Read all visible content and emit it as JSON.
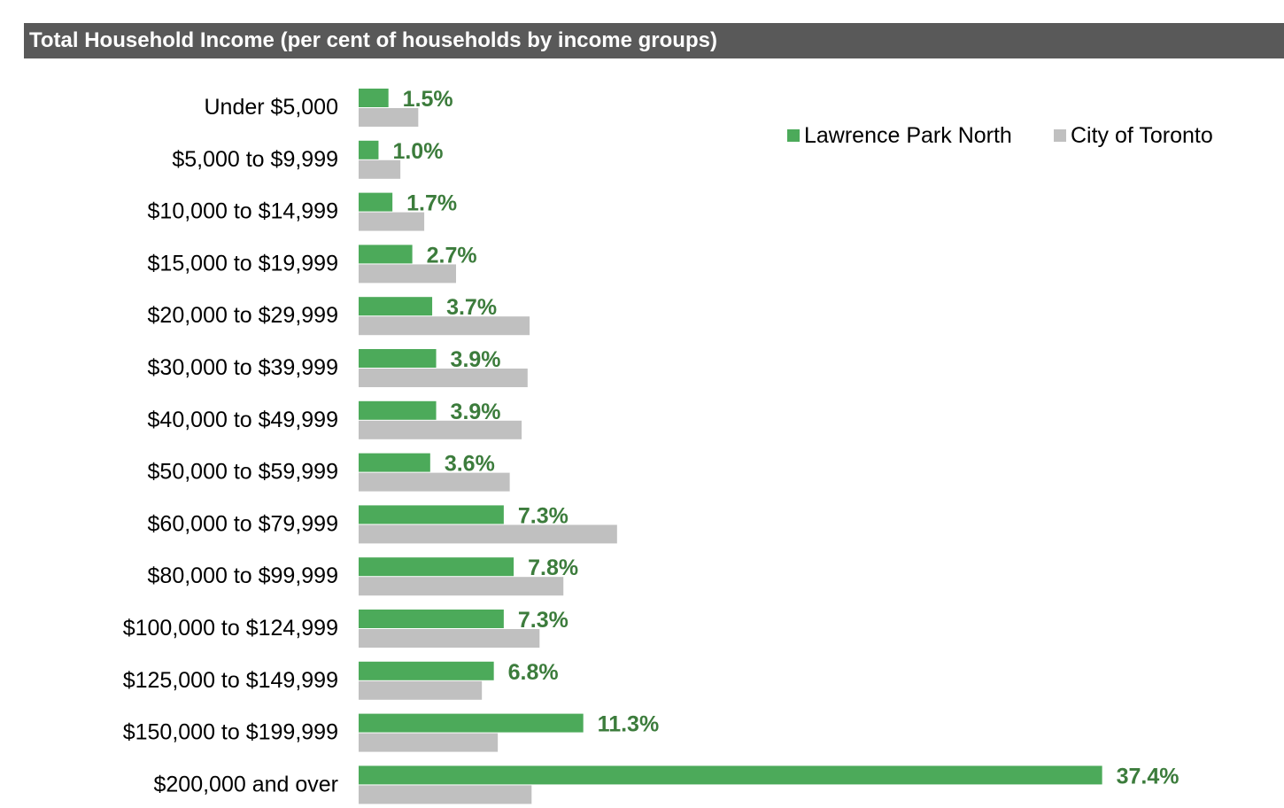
{
  "header": {
    "title": "Total Household Income (per cent of households by income groups)",
    "background": "#595959",
    "text_color": "#ffffff"
  },
  "chart_data": {
    "type": "bar",
    "orientation": "horizontal",
    "categories": [
      "Under $5,000",
      "$5,000 to $9,999",
      "$10,000 to $14,999",
      "$15,000 to $19,999",
      "$20,000 to $29,999",
      "$30,000 to $39,999",
      "$40,000 to $49,999",
      "$50,000 to $59,999",
      "$60,000 to $79,999",
      "$80,000 to $99,999",
      "$100,000 to $124,999",
      "$125,000 to $149,999",
      "$150,000 to $199,999",
      "$200,000 and over"
    ],
    "series": [
      {
        "name": "Lawrence Park North",
        "color": "#4caa5a",
        "values": [
          1.5,
          1.0,
          1.7,
          2.7,
          3.7,
          3.9,
          3.9,
          3.6,
          7.3,
          7.8,
          7.3,
          6.8,
          11.3,
          37.4
        ],
        "data_labels": [
          "1.5%",
          "1.0%",
          "1.7%",
          "2.7%",
          "3.7%",
          "3.9%",
          "3.9%",
          "3.6%",
          "7.3%",
          "7.8%",
          "7.3%",
          "6.8%",
          "11.3%",
          "37.4%"
        ]
      },
      {
        "name": "City of Toronto",
        "color": "#c0c0c0",
        "values": [
          3.0,
          2.1,
          3.3,
          4.9,
          8.6,
          8.5,
          8.2,
          7.6,
          13.0,
          10.3,
          9.1,
          6.2,
          7.0,
          8.7
        ]
      }
    ],
    "data_label_color": "#3c7c3c",
    "xlim": [
      0,
      40
    ],
    "grid": false,
    "legend_position": "top-right",
    "title": "Total Household Income (per cent of households by income groups)",
    "xlabel": "",
    "ylabel": ""
  }
}
